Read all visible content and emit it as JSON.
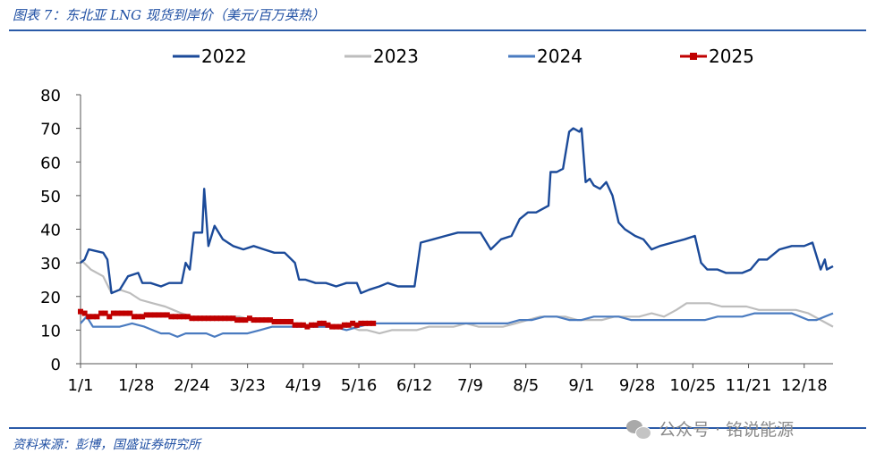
{
  "title": "图表 7：东北亚 LNG 现货到岸价（美元/百万英热）",
  "source": "资料来源：彭博，国盛证券研究所",
  "watermark": "公众号 · 铭说能源",
  "chart_data": {
    "type": "line",
    "x_unit": "day of year (1 = Jan 1)",
    "xticks": [
      {
        "label": "1/1",
        "day": 1
      },
      {
        "label": "1/28",
        "day": 28
      },
      {
        "label": "2/24",
        "day": 55
      },
      {
        "label": "3/23",
        "day": 82
      },
      {
        "label": "4/19",
        "day": 109
      },
      {
        "label": "5/16",
        "day": 136
      },
      {
        "label": "6/12",
        "day": 163
      },
      {
        "label": "7/9",
        "day": 190
      },
      {
        "label": "8/5",
        "day": 217
      },
      {
        "label": "9/1",
        "day": 244
      },
      {
        "label": "9/28",
        "day": 271
      },
      {
        "label": "10/25",
        "day": 298
      },
      {
        "label": "11/21",
        "day": 325
      },
      {
        "label": "12/18",
        "day": 352
      }
    ],
    "xlim": [
      1,
      366
    ],
    "ylim": [
      0,
      80
    ],
    "yticks": [
      0,
      10,
      20,
      30,
      40,
      50,
      60,
      70,
      80
    ],
    "xlabel": "",
    "ylabel": "",
    "grid": false,
    "legend_position": "top",
    "series": [
      {
        "name": "2022",
        "color": "#1b4a99",
        "marker": "none",
        "points": [
          [
            1,
            30
          ],
          [
            3,
            31
          ],
          [
            5,
            34
          ],
          [
            12,
            33
          ],
          [
            14,
            31
          ],
          [
            16,
            21
          ],
          [
            20,
            22
          ],
          [
            24,
            26
          ],
          [
            29,
            27
          ],
          [
            31,
            24
          ],
          [
            35,
            24
          ],
          [
            40,
            23
          ],
          [
            44,
            24
          ],
          [
            50,
            24
          ],
          [
            52,
            30
          ],
          [
            54,
            28
          ],
          [
            56,
            39
          ],
          [
            60,
            39
          ],
          [
            61,
            52
          ],
          [
            63,
            35
          ],
          [
            66,
            41
          ],
          [
            70,
            37
          ],
          [
            75,
            35
          ],
          [
            80,
            34
          ],
          [
            85,
            35
          ],
          [
            90,
            34
          ],
          [
            95,
            33
          ],
          [
            100,
            33
          ],
          [
            105,
            30
          ],
          [
            107,
            25
          ],
          [
            110,
            25
          ],
          [
            115,
            24
          ],
          [
            120,
            24
          ],
          [
            125,
            23
          ],
          [
            130,
            24
          ],
          [
            135,
            24
          ],
          [
            137,
            21
          ],
          [
            141,
            22
          ],
          [
            146,
            23
          ],
          [
            150,
            24
          ],
          [
            155,
            23
          ],
          [
            160,
            23
          ],
          [
            163,
            23
          ],
          [
            166,
            36
          ],
          [
            172,
            37
          ],
          [
            178,
            38
          ],
          [
            184,
            39
          ],
          [
            190,
            39
          ],
          [
            195,
            39
          ],
          [
            200,
            34
          ],
          [
            205,
            37
          ],
          [
            210,
            38
          ],
          [
            214,
            43
          ],
          [
            218,
            45
          ],
          [
            222,
            45
          ],
          [
            228,
            47
          ],
          [
            229,
            57
          ],
          [
            232,
            57
          ],
          [
            235,
            58
          ],
          [
            238,
            69
          ],
          [
            240,
            70
          ],
          [
            243,
            69
          ],
          [
            244,
            70
          ],
          [
            246,
            54
          ],
          [
            248,
            55
          ],
          [
            250,
            53
          ],
          [
            253,
            52
          ],
          [
            256,
            54
          ],
          [
            259,
            50
          ],
          [
            262,
            42
          ],
          [
            265,
            40
          ],
          [
            270,
            38
          ],
          [
            274,
            37
          ],
          [
            278,
            34
          ],
          [
            282,
            35
          ],
          [
            288,
            36
          ],
          [
            294,
            37
          ],
          [
            299,
            38
          ],
          [
            302,
            30
          ],
          [
            305,
            28
          ],
          [
            310,
            28
          ],
          [
            314,
            27
          ],
          [
            318,
            27
          ],
          [
            322,
            27
          ],
          [
            326,
            28
          ],
          [
            330,
            31
          ],
          [
            334,
            31
          ],
          [
            340,
            34
          ],
          [
            346,
            35
          ],
          [
            352,
            35
          ],
          [
            356,
            36
          ],
          [
            360,
            28
          ],
          [
            362,
            31
          ],
          [
            363,
            28
          ],
          [
            366,
            29
          ]
        ]
      },
      {
        "name": "2023",
        "color": "#bdbdbd",
        "marker": "none",
        "points": [
          [
            1,
            31
          ],
          [
            6,
            28
          ],
          [
            12,
            26
          ],
          [
            16,
            21
          ],
          [
            20,
            22
          ],
          [
            25,
            21
          ],
          [
            30,
            19
          ],
          [
            36,
            18
          ],
          [
            42,
            17
          ],
          [
            46,
            16
          ],
          [
            50,
            15
          ],
          [
            55,
            14
          ],
          [
            60,
            14
          ],
          [
            66,
            14
          ],
          [
            72,
            14
          ],
          [
            78,
            14
          ],
          [
            84,
            13
          ],
          [
            90,
            13
          ],
          [
            96,
            13
          ],
          [
            102,
            12
          ],
          [
            108,
            12
          ],
          [
            114,
            11
          ],
          [
            120,
            11
          ],
          [
            126,
            11
          ],
          [
            132,
            11
          ],
          [
            136,
            10
          ],
          [
            140,
            10
          ],
          [
            146,
            9
          ],
          [
            152,
            10
          ],
          [
            158,
            10
          ],
          [
            164,
            10
          ],
          [
            170,
            11
          ],
          [
            176,
            11
          ],
          [
            182,
            11
          ],
          [
            188,
            12
          ],
          [
            194,
            11
          ],
          [
            200,
            11
          ],
          [
            206,
            11
          ],
          [
            212,
            12
          ],
          [
            218,
            13
          ],
          [
            224,
            14
          ],
          [
            230,
            14
          ],
          [
            236,
            14
          ],
          [
            242,
            13
          ],
          [
            248,
            13
          ],
          [
            254,
            13
          ],
          [
            260,
            14
          ],
          [
            266,
            14
          ],
          [
            272,
            14
          ],
          [
            278,
            15
          ],
          [
            284,
            14
          ],
          [
            290,
            16
          ],
          [
            295,
            18
          ],
          [
            300,
            18
          ],
          [
            306,
            18
          ],
          [
            312,
            17
          ],
          [
            318,
            17
          ],
          [
            324,
            17
          ],
          [
            330,
            16
          ],
          [
            336,
            16
          ],
          [
            342,
            16
          ],
          [
            348,
            16
          ],
          [
            354,
            15
          ],
          [
            360,
            13
          ],
          [
            366,
            11
          ]
        ]
      },
      {
        "name": "2024",
        "color": "#4a7bc0",
        "marker": "none",
        "points": [
          [
            1,
            12
          ],
          [
            4,
            14
          ],
          [
            7,
            11
          ],
          [
            14,
            11
          ],
          [
            20,
            11
          ],
          [
            26,
            12
          ],
          [
            32,
            11
          ],
          [
            36,
            10
          ],
          [
            40,
            9
          ],
          [
            44,
            9
          ],
          [
            48,
            8
          ],
          [
            52,
            9
          ],
          [
            56,
            9
          ],
          [
            62,
            9
          ],
          [
            66,
            8
          ],
          [
            70,
            9
          ],
          [
            76,
            9
          ],
          [
            82,
            9
          ],
          [
            88,
            10
          ],
          [
            94,
            11
          ],
          [
            100,
            11
          ],
          [
            106,
            11
          ],
          [
            112,
            11
          ],
          [
            118,
            11
          ],
          [
            124,
            11
          ],
          [
            130,
            10
          ],
          [
            136,
            11
          ],
          [
            142,
            12
          ],
          [
            148,
            12
          ],
          [
            154,
            12
          ],
          [
            160,
            12
          ],
          [
            166,
            12
          ],
          [
            172,
            12
          ],
          [
            178,
            12
          ],
          [
            184,
            12
          ],
          [
            190,
            12
          ],
          [
            196,
            12
          ],
          [
            202,
            12
          ],
          [
            208,
            12
          ],
          [
            214,
            13
          ],
          [
            220,
            13
          ],
          [
            226,
            14
          ],
          [
            232,
            14
          ],
          [
            238,
            13
          ],
          [
            244,
            13
          ],
          [
            250,
            14
          ],
          [
            256,
            14
          ],
          [
            262,
            14
          ],
          [
            268,
            13
          ],
          [
            274,
            13
          ],
          [
            280,
            13
          ],
          [
            286,
            13
          ],
          [
            292,
            13
          ],
          [
            298,
            13
          ],
          [
            304,
            13
          ],
          [
            310,
            14
          ],
          [
            316,
            14
          ],
          [
            322,
            14
          ],
          [
            328,
            15
          ],
          [
            334,
            15
          ],
          [
            340,
            15
          ],
          [
            346,
            15
          ],
          [
            350,
            14
          ],
          [
            354,
            13
          ],
          [
            358,
            13
          ],
          [
            362,
            14
          ],
          [
            366,
            15
          ]
        ]
      },
      {
        "name": "2025",
        "color": "#c00000",
        "marker": "square",
        "points": [
          [
            1,
            15.5
          ],
          [
            3,
            15
          ],
          [
            5,
            14
          ],
          [
            7,
            14
          ],
          [
            9,
            14
          ],
          [
            11,
            15
          ],
          [
            13,
            15
          ],
          [
            15,
            14
          ],
          [
            17,
            15
          ],
          [
            19,
            15
          ],
          [
            21,
            15
          ],
          [
            23,
            15
          ],
          [
            25,
            15
          ],
          [
            27,
            14
          ],
          [
            29,
            14
          ],
          [
            31,
            14
          ],
          [
            33,
            14.5
          ],
          [
            35,
            14.5
          ],
          [
            37,
            14.5
          ],
          [
            39,
            14.5
          ],
          [
            41,
            14.5
          ],
          [
            43,
            14.5
          ],
          [
            45,
            14
          ],
          [
            47,
            14
          ],
          [
            49,
            14
          ],
          [
            51,
            14
          ],
          [
            53,
            14
          ],
          [
            55,
            13.5
          ],
          [
            57,
            13.5
          ],
          [
            59,
            13.5
          ],
          [
            61,
            13.5
          ],
          [
            63,
            13.5
          ],
          [
            65,
            13.5
          ],
          [
            67,
            13.5
          ],
          [
            69,
            13.5
          ],
          [
            71,
            13.5
          ],
          [
            73,
            13.5
          ],
          [
            75,
            13.5
          ],
          [
            77,
            13
          ],
          [
            79,
            13
          ],
          [
            81,
            13
          ],
          [
            83,
            13.5
          ],
          [
            85,
            13
          ],
          [
            87,
            13
          ],
          [
            89,
            13
          ],
          [
            91,
            13
          ],
          [
            93,
            13
          ],
          [
            95,
            12.5
          ],
          [
            97,
            12.5
          ],
          [
            99,
            12.5
          ],
          [
            101,
            12.5
          ],
          [
            103,
            12.5
          ],
          [
            105,
            11.5
          ],
          [
            107,
            11.5
          ],
          [
            109,
            11.5
          ],
          [
            111,
            11
          ],
          [
            113,
            11.5
          ],
          [
            115,
            11.5
          ],
          [
            117,
            12
          ],
          [
            119,
            12
          ],
          [
            121,
            11.5
          ],
          [
            123,
            11
          ],
          [
            125,
            11
          ],
          [
            127,
            11
          ],
          [
            129,
            11.5
          ],
          [
            131,
            11.5
          ],
          [
            133,
            12
          ],
          [
            135,
            11.5
          ],
          [
            137,
            12
          ],
          [
            139,
            12
          ],
          [
            141,
            12
          ],
          [
            143,
            12
          ]
        ]
      }
    ]
  }
}
